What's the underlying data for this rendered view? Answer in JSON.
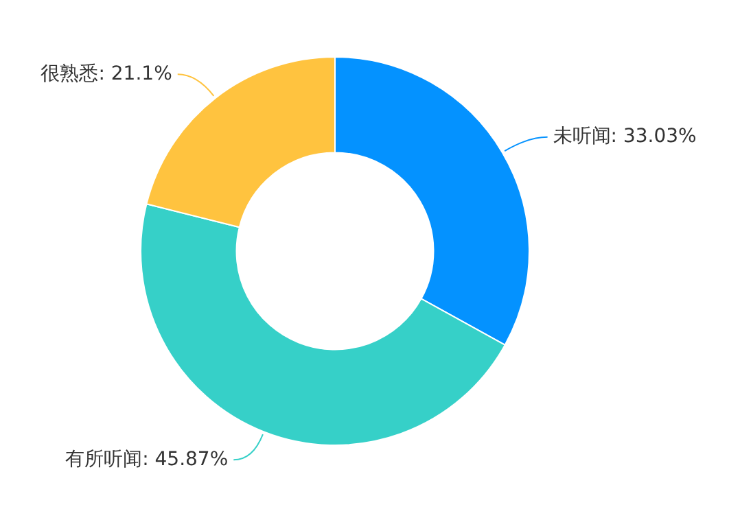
{
  "chart_data": {
    "type": "donut",
    "categories": [
      "未听闻",
      "有所听闻",
      "很熟悉"
    ],
    "values": [
      33.03,
      45.87,
      21.1
    ],
    "colors": [
      "#0492ff",
      "#36d0c8",
      "#ffc33f"
    ],
    "value_labels": [
      "33.03%",
      "45.87%",
      "21.1%"
    ],
    "legend": false
  }
}
